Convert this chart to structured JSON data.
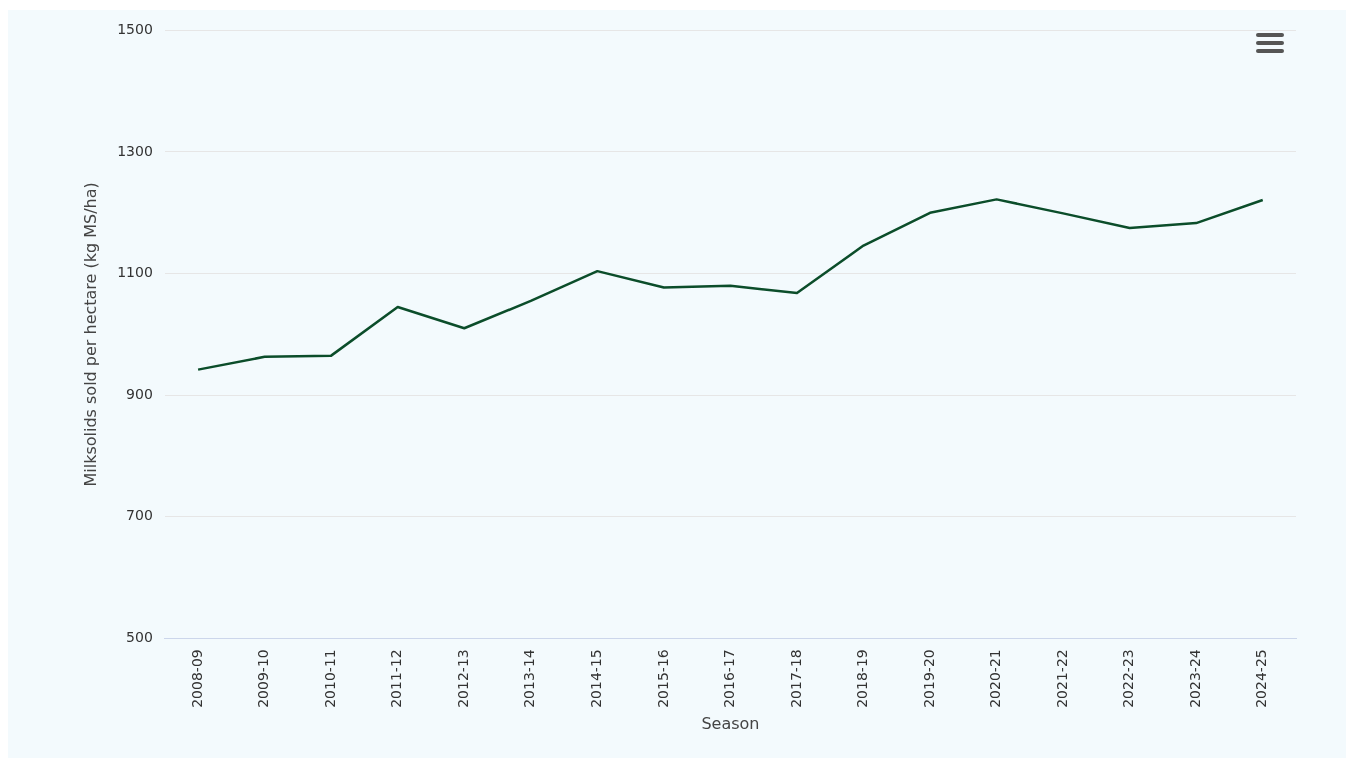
{
  "chart_data": {
    "type": "line",
    "xlabel": "Season",
    "ylabel": "Milksolids sold per hectare (kg MS/ha)",
    "categories": [
      "2008-09",
      "2009-10",
      "2010-11",
      "2011-12",
      "2012-13",
      "2013-14",
      "2014-15",
      "2015-16",
      "2016-17",
      "2017-18",
      "2018-19",
      "2019-20",
      "2020-21",
      "2021-22",
      "2022-23",
      "2023-24",
      "2024-25"
    ],
    "series": [
      {
        "color": "#0b4d2a",
        "values": [
          942,
          963,
          965,
          1045,
          1010,
          1055,
          1104,
          1077,
          1080,
          1068,
          1146,
          1200,
          1222,
          1199,
          1175,
          1183,
          1221
        ]
      }
    ],
    "ylim": [
      500,
      1500
    ],
    "yticks": [
      500,
      700,
      900,
      1100,
      1300,
      1500
    ],
    "grid": "y",
    "legend": false,
    "marker": "none",
    "line_style": "solid"
  }
}
